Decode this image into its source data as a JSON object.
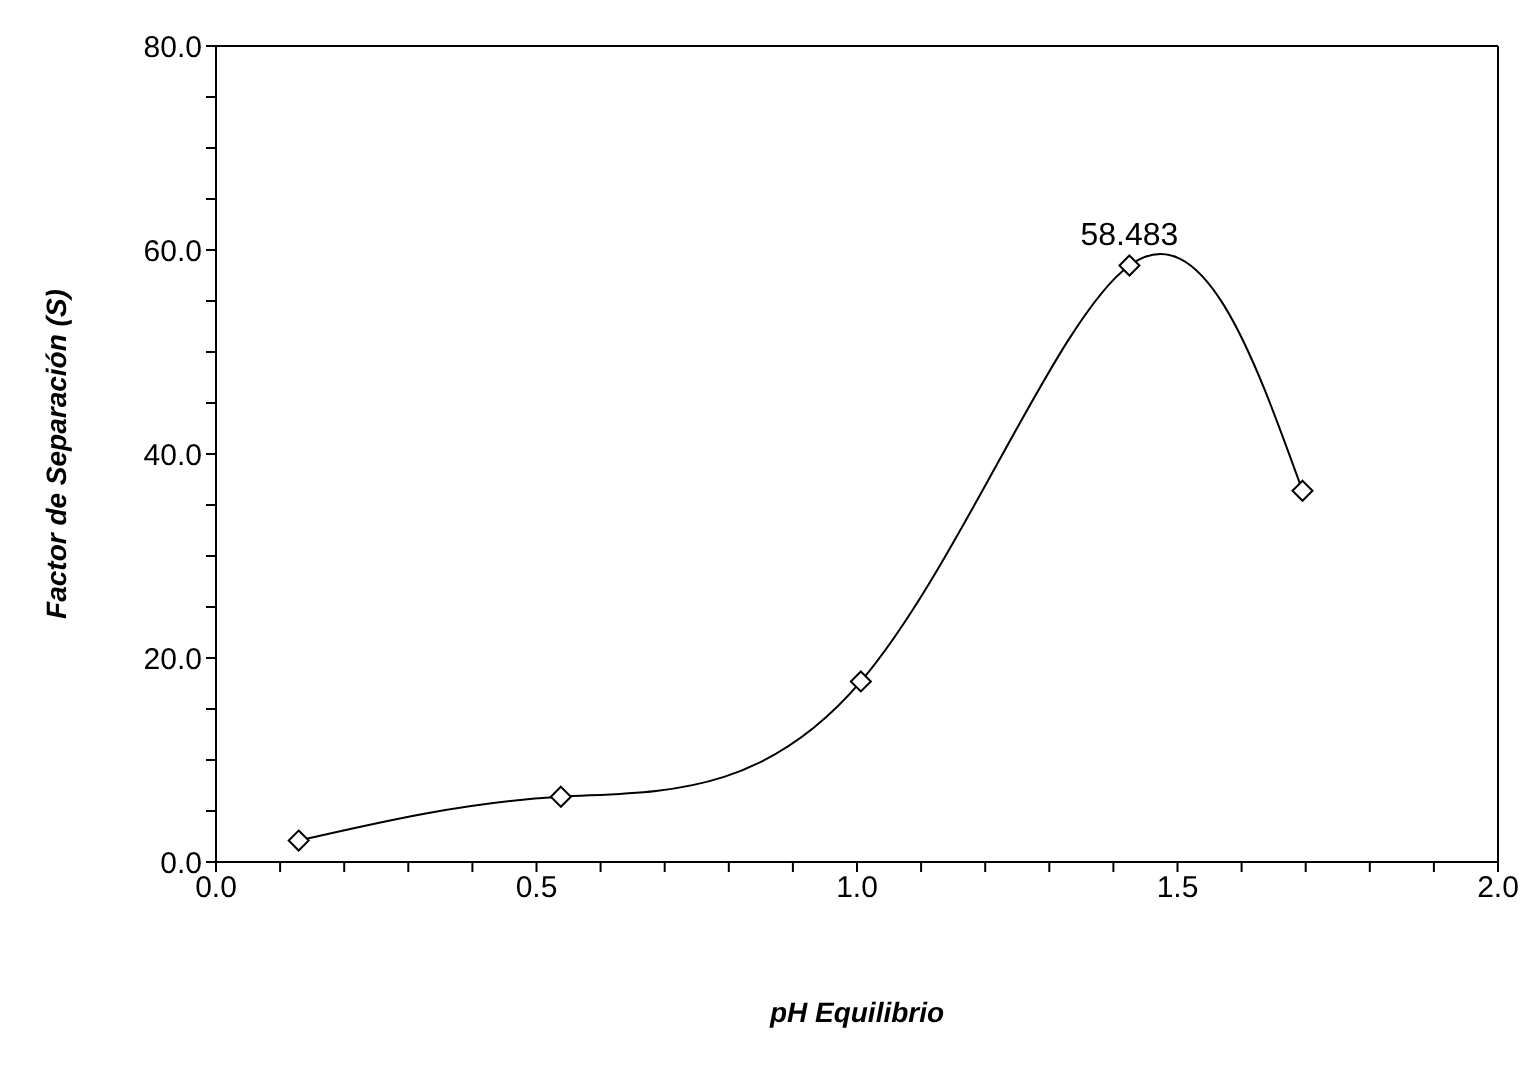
{
  "chart_data": {
    "type": "line",
    "xlabel": "pH Equilibrio",
    "ylabel": "Factor de Separación (S)",
    "x": [
      0.129,
      0.538,
      1.006,
      1.425,
      1.695
    ],
    "series": [
      {
        "color": "#000000",
        "values": [
          2.1,
          6.4,
          17.7,
          58.483,
          36.4
        ],
        "value_labels": [
          null,
          null,
          null,
          "58.483",
          null
        ]
      }
    ],
    "xlim": [
      0,
      2
    ],
    "xticks": [
      {
        "value": 0,
        "label": "0.0"
      },
      {
        "value": 0.1,
        "label": null
      },
      {
        "value": 0.2,
        "label": null
      },
      {
        "value": 0.3,
        "label": null
      },
      {
        "value": 0.4,
        "label": null
      },
      {
        "value": 0.5,
        "label": "0.5"
      },
      {
        "value": 0.6,
        "label": null
      },
      {
        "value": 0.7,
        "label": null
      },
      {
        "value": 0.8,
        "label": null
      },
      {
        "value": 0.9,
        "label": null
      },
      {
        "value": 1,
        "label": "1.0"
      },
      {
        "value": 1.1,
        "label": null
      },
      {
        "value": 1.2,
        "label": null
      },
      {
        "value": 1.3,
        "label": null
      },
      {
        "value": 1.4,
        "label": null
      },
      {
        "value": 1.5,
        "label": "1.5"
      },
      {
        "value": 1.6,
        "label": null
      },
      {
        "value": 1.7,
        "label": null
      },
      {
        "value": 1.8,
        "label": null
      },
      {
        "value": 1.9,
        "label": null
      },
      {
        "value": 2,
        "label": "2.0"
      }
    ],
    "ylim": [
      0,
      80
    ],
    "yticks": [
      {
        "value": 0,
        "label": "0.0"
      },
      {
        "value": 5,
        "label": null
      },
      {
        "value": 10,
        "label": null
      },
      {
        "value": 15,
        "label": null
      },
      {
        "value": 20,
        "label": "20.0"
      },
      {
        "value": 25,
        "label": null
      },
      {
        "value": 30,
        "label": null
      },
      {
        "value": 35,
        "label": null
      },
      {
        "value": 40,
        "label": "40.0"
      },
      {
        "value": 45,
        "label": null
      },
      {
        "value": 50,
        "label": null
      },
      {
        "value": 55,
        "label": null
      },
      {
        "value": 60,
        "label": "60.0"
      },
      {
        "value": 65,
        "label": null
      },
      {
        "value": 70,
        "label": null
      },
      {
        "value": 75,
        "label": null
      },
      {
        "value": 80,
        "label": "80.0"
      }
    ],
    "grid": false,
    "legend": false,
    "marker": "diamond",
    "line_style": "solid"
  }
}
